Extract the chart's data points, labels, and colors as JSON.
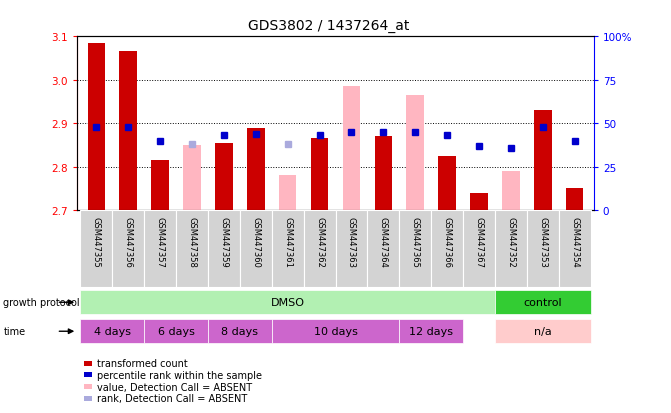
{
  "title": "GDS3802 / 1437264_at",
  "samples": [
    "GSM447355",
    "GSM447356",
    "GSM447357",
    "GSM447358",
    "GSM447359",
    "GSM447360",
    "GSM447361",
    "GSM447362",
    "GSM447363",
    "GSM447364",
    "GSM447365",
    "GSM447366",
    "GSM447367",
    "GSM447352",
    "GSM447353",
    "GSM447354"
  ],
  "red_values": [
    3.085,
    3.065,
    2.815,
    null,
    2.855,
    2.89,
    null,
    2.865,
    null,
    2.87,
    null,
    2.825,
    2.74,
    null,
    2.93,
    2.75
  ],
  "pink_values": [
    null,
    null,
    null,
    2.85,
    null,
    null,
    2.78,
    null,
    2.985,
    null,
    2.965,
    null,
    null,
    2.79,
    null,
    null
  ],
  "blue_values": [
    48,
    48,
    40,
    38,
    43,
    44,
    38,
    43,
    45,
    45,
    45,
    43,
    37,
    36,
    48,
    40
  ],
  "blue_absent": [
    false,
    false,
    false,
    true,
    false,
    false,
    true,
    false,
    false,
    false,
    false,
    false,
    false,
    false,
    false,
    false
  ],
  "ylim_left": [
    2.7,
    3.1
  ],
  "ylim_right": [
    0,
    100
  ],
  "yticks_left": [
    2.7,
    2.8,
    2.9,
    3.0,
    3.1
  ],
  "yticks_right": [
    0,
    25,
    50,
    75,
    100
  ],
  "bar_width": 0.55,
  "red_color": "#cc0000",
  "pink_color": "#ffb6c1",
  "blue_color": "#0000cc",
  "blue_absent_color": "#aaaadd",
  "protocol_light_green": "#b2f0b2",
  "protocol_dark_green": "#33cc33",
  "time_magenta": "#cc66cc",
  "time_light_pink": "#ffcccc",
  "tick_label_fontsize": 7.5,
  "title_fontsize": 10,
  "row_label_fontsize": 7,
  "legend_fontsize": 7,
  "sample_fontsize": 6
}
